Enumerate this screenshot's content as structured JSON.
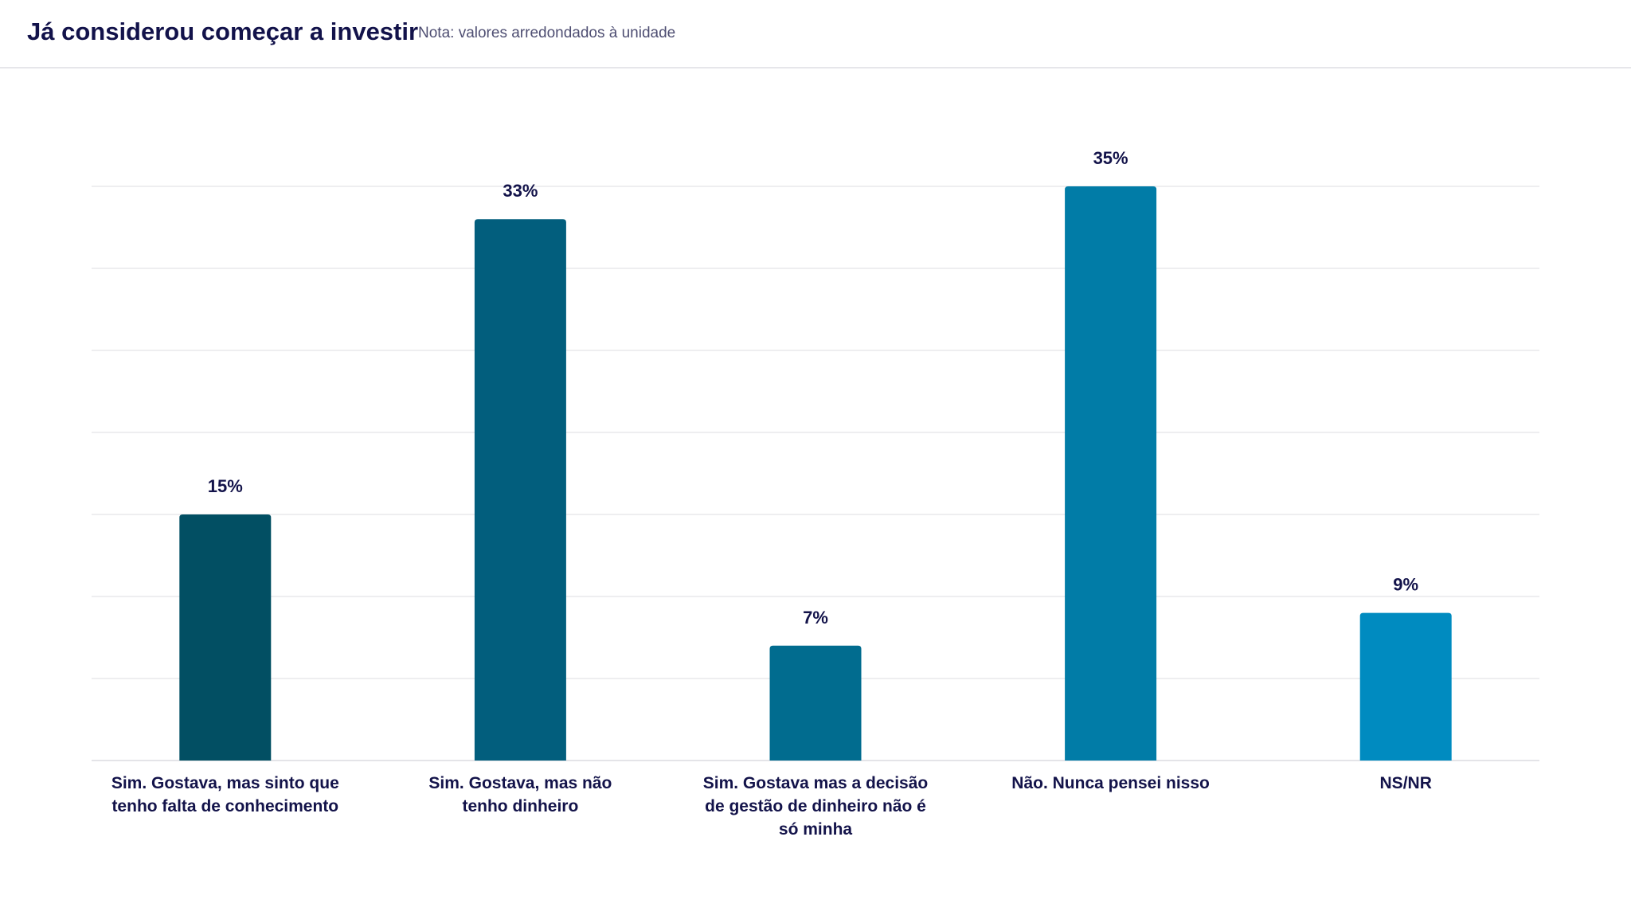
{
  "header": {
    "title": "Já considerou começar a investir",
    "note": "Nota: valores arredondados à unidade"
  },
  "chart_data": {
    "type": "bar",
    "title": "Já considerou começar a investir",
    "subtitle": "Nota: valores arredondados à unidade",
    "xlabel": "",
    "ylabel": "",
    "ylim": [
      0,
      35
    ],
    "grid": true,
    "gridStep": 5,
    "categories": [
      "Sim. Gostava, mas sinto que tenho falta de conhecimento",
      "Sim. Gostava, mas não tenho dinheiro",
      "Sim. Gostava mas a decisão de gestão de dinheiro não é só minha",
      "Não. Nunca pensei nisso",
      "NS/NR"
    ],
    "values": [
      15,
      33,
      7,
      35,
      9
    ],
    "value_labels": [
      "15%",
      "33%",
      "7%",
      "35%",
      "9%"
    ],
    "colors": [
      "#024f63",
      "#025e7d",
      "#016c8f",
      "#017ca7",
      "#008bc0"
    ]
  }
}
